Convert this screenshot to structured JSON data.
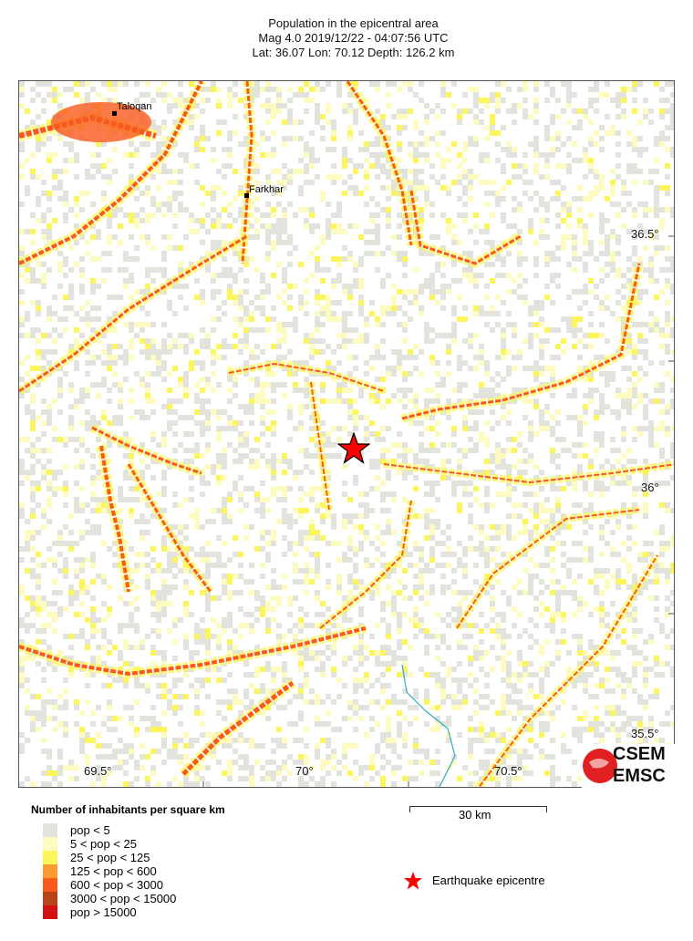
{
  "header": {
    "title": "Population in the epicentral area",
    "line2": "Mag 4.0  2019/12/22 - 04:07:56 UTC",
    "line3": "Lat: 36.07    Lon:  70.12    Depth: 126.2 km"
  },
  "map": {
    "lon_labels": [
      "69.5°",
      "70°",
      "70.5°"
    ],
    "lat_labels": [
      "36.5°",
      "36°",
      "35.5°"
    ],
    "cities": [
      {
        "name": "Taloqan"
      },
      {
        "name": "Farkhar"
      }
    ],
    "epicentre": {
      "lat": 36.07,
      "lon": 70.12,
      "color": "#ff0000"
    },
    "river_color": "#33aacc"
  },
  "logo": {
    "text_top": "CSEM",
    "text_bottom": "EMSC",
    "color": "#e02020"
  },
  "scale_bar": {
    "label": "30 km"
  },
  "legend": {
    "title": "Number of inhabitants per square km",
    "items": [
      {
        "label": "pop < 5",
        "color": "#e3e3de"
      },
      {
        "label": "5 < pop < 25",
        "color": "#fdfbc0"
      },
      {
        "label": "25 < pop < 125",
        "color": "#fcf65a"
      },
      {
        "label": "125 < pop < 600",
        "color": "#fb9a30"
      },
      {
        "label": "600 < pop < 3000",
        "color": "#f95a1c"
      },
      {
        "label": "3000 < pop < 15000",
        "color": "#b8451a"
      },
      {
        "label": "pop > 15000",
        "color": "#d41010"
      }
    ],
    "epicentre_label": "Earthquake epicentre"
  }
}
